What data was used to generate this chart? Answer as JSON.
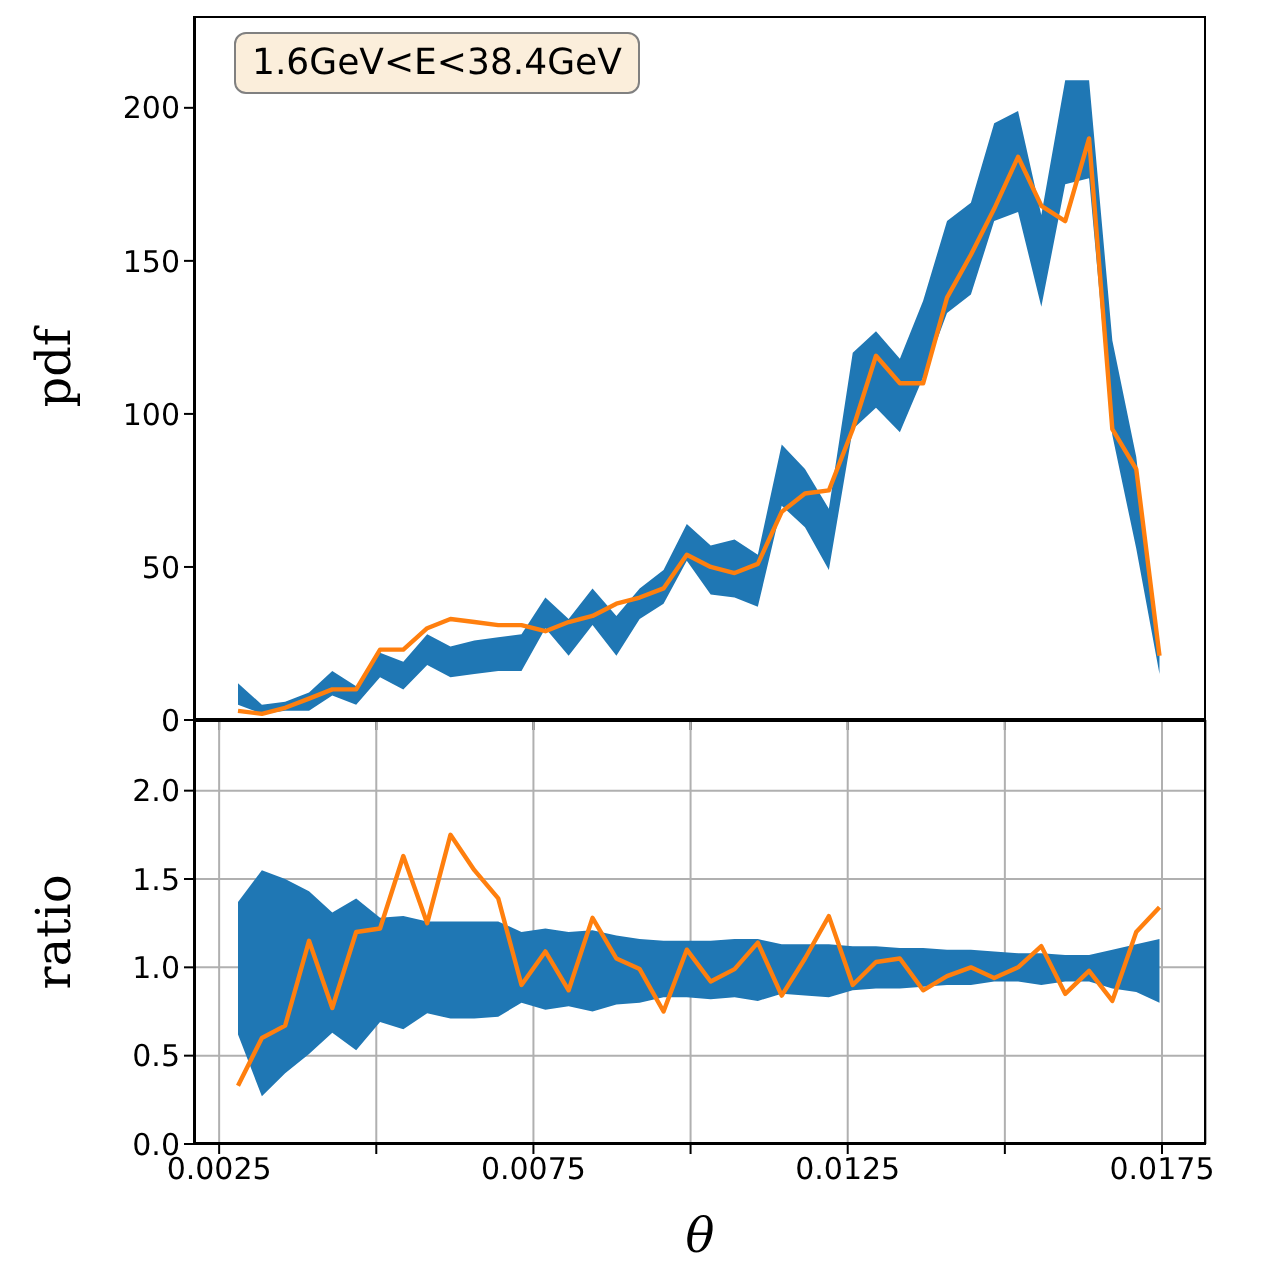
{
  "chart_data": [
    {
      "type": "line",
      "ylabel": "pdf",
      "annotations": [
        "1.6GeV<E<38.4GeV"
      ],
      "x": [
        0.0028,
        0.00318,
        0.00355,
        0.00393,
        0.0043,
        0.00468,
        0.00506,
        0.00543,
        0.00581,
        0.00618,
        0.00656,
        0.00694,
        0.00731,
        0.00769,
        0.00806,
        0.00844,
        0.00882,
        0.00919,
        0.00957,
        0.00994,
        0.01032,
        0.0107,
        0.01107,
        0.01145,
        0.01182,
        0.0122,
        0.01258,
        0.01295,
        0.01333,
        0.0137,
        0.01408,
        0.01446,
        0.01483,
        0.01521,
        0.01558,
        0.01596,
        0.01634,
        0.01671,
        0.01709,
        0.01746
      ],
      "xlim": [
        0.0021,
        0.0182
      ],
      "xticks": [
        {
          "value": 0.0025,
          "label": null
        },
        {
          "value": 0.005,
          "label": null
        },
        {
          "value": 0.0075,
          "label": null
        },
        {
          "value": 0.01,
          "label": null
        },
        {
          "value": 0.0125,
          "label": null
        },
        {
          "value": 0.015,
          "label": null
        },
        {
          "value": 0.0175,
          "label": null
        }
      ],
      "ylim": [
        0,
        230
      ],
      "yticks": [
        0,
        50,
        100,
        150,
        200
      ],
      "tick_labels": "y",
      "grid": false,
      "series": [
        {
          "color": "#1f77b4",
          "values": [
            null,
            null,
            null,
            null,
            null,
            null,
            null,
            null,
            null,
            null,
            null,
            null,
            null,
            null,
            null,
            null,
            null,
            null,
            null,
            null,
            null,
            null,
            null,
            null,
            null,
            null,
            null,
            null,
            null,
            null,
            null,
            null,
            null,
            null,
            null,
            null,
            null,
            null,
            null,
            null
          ],
          "lower": [
            5,
            2,
            3,
            3,
            8,
            5,
            14,
            10,
            18,
            14,
            15,
            16,
            16,
            30,
            21,
            31,
            21,
            33,
            38,
            52,
            41,
            40,
            37,
            70,
            63,
            49,
            95,
            102,
            94,
            112,
            133,
            139,
            163,
            166,
            135,
            175,
            177,
            93,
            56,
            15
          ],
          "upper": [
            12,
            5,
            6,
            9,
            16,
            11,
            22,
            19,
            28,
            24,
            26,
            27,
            28,
            40,
            33,
            43,
            34,
            43,
            49,
            64,
            57,
            59,
            54,
            90,
            82,
            69,
            120,
            127,
            118,
            137,
            163,
            169,
            195,
            199,
            165,
            209,
            209,
            124,
            86,
            21
          ]
        },
        {
          "color": "#ff7f0e",
          "values": [
            3,
            2,
            4,
            7,
            10,
            10,
            23,
            23,
            30,
            33,
            32,
            31,
            31,
            29,
            32,
            34,
            38,
            40,
            43,
            54,
            50,
            48,
            51,
            68,
            74,
            75,
            95,
            119,
            110,
            110,
            138,
            152,
            167,
            184,
            168,
            163,
            190,
            95,
            82,
            21
          ]
        }
      ]
    },
    {
      "type": "line",
      "xlabel": "θ",
      "ylabel": "ratio",
      "x": [
        0.0028,
        0.00318,
        0.00355,
        0.00393,
        0.0043,
        0.00468,
        0.00506,
        0.00543,
        0.00581,
        0.00618,
        0.00656,
        0.00694,
        0.00731,
        0.00769,
        0.00806,
        0.00844,
        0.00882,
        0.00919,
        0.00957,
        0.00994,
        0.01032,
        0.0107,
        0.01107,
        0.01145,
        0.01182,
        0.0122,
        0.01258,
        0.01295,
        0.01333,
        0.0137,
        0.01408,
        0.01446,
        0.01483,
        0.01521,
        0.01558,
        0.01596,
        0.01634,
        0.01671,
        0.01709,
        0.01746
      ],
      "xlim": [
        0.0021,
        0.0182
      ],
      "xticks": [
        0.0025,
        {
          "value": 0.005,
          "label": null
        },
        0.0075,
        {
          "value": 0.01,
          "label": null
        },
        0.0125,
        {
          "value": 0.015,
          "label": null
        },
        0.0175
      ],
      "ylim": [
        0,
        2.4
      ],
      "yticks": [
        {
          "value": 0,
          "label": "0.0"
        },
        0.5,
        {
          "value": 1,
          "label": "1.0"
        },
        1.5,
        {
          "value": 2,
          "label": "2.0"
        }
      ],
      "grid": true,
      "series": [
        {
          "color": "#1f77b4",
          "values": [
            null,
            null,
            null,
            null,
            null,
            null,
            null,
            null,
            null,
            null,
            null,
            null,
            null,
            null,
            null,
            null,
            null,
            null,
            null,
            null,
            null,
            null,
            null,
            null,
            null,
            null,
            null,
            null,
            null,
            null,
            null,
            null,
            null,
            null,
            null,
            null,
            null,
            null,
            null,
            null
          ],
          "lower": [
            0.62,
            0.27,
            0.4,
            0.51,
            0.63,
            0.53,
            0.69,
            0.65,
            0.74,
            0.71,
            0.71,
            0.72,
            0.8,
            0.76,
            0.78,
            0.75,
            0.79,
            0.8,
            0.83,
            0.83,
            0.82,
            0.83,
            0.81,
            0.85,
            0.84,
            0.83,
            0.87,
            0.88,
            0.88,
            0.89,
            0.9,
            0.9,
            0.92,
            0.92,
            0.9,
            0.92,
            0.92,
            0.88,
            0.86,
            0.8
          ],
          "upper": [
            1.37,
            1.55,
            1.5,
            1.43,
            1.31,
            1.39,
            1.28,
            1.29,
            1.26,
            1.26,
            1.26,
            1.26,
            1.2,
            1.22,
            1.2,
            1.21,
            1.18,
            1.16,
            1.15,
            1.15,
            1.15,
            1.16,
            1.16,
            1.13,
            1.13,
            1.13,
            1.12,
            1.12,
            1.11,
            1.11,
            1.1,
            1.1,
            1.09,
            1.08,
            1.08,
            1.07,
            1.07,
            1.1,
            1.13,
            1.16
          ]
        },
        {
          "color": "#ff7f0e",
          "values": [
            0.33,
            0.6,
            0.67,
            1.15,
            0.77,
            1.2,
            1.22,
            1.63,
            1.25,
            1.75,
            1.55,
            1.39,
            0.9,
            1.09,
            0.87,
            1.28,
            1.05,
            0.99,
            0.75,
            1.1,
            0.92,
            0.99,
            1.14,
            0.84,
            1.05,
            1.29,
            0.9,
            1.03,
            1.05,
            0.87,
            0.95,
            1.0,
            0.94,
            1.0,
            1.12,
            0.85,
            0.98,
            0.81,
            1.2,
            1.34
          ]
        }
      ]
    }
  ]
}
